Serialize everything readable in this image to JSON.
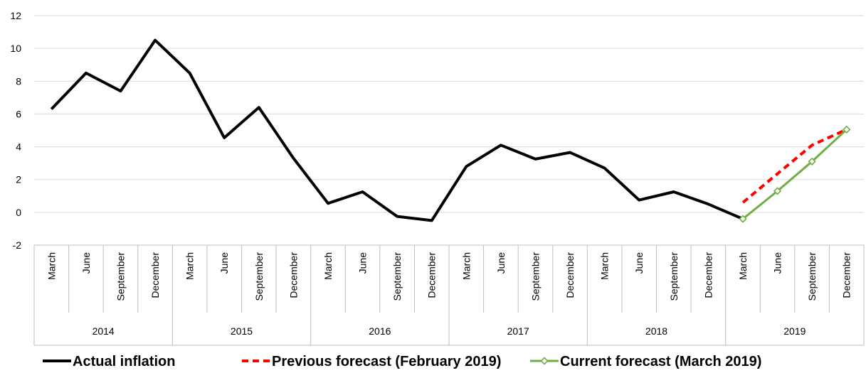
{
  "chart_data": {
    "type": "line",
    "title": "",
    "xlabel": "",
    "ylabel": "",
    "ylim": [
      -2,
      12
    ],
    "yticks": [
      -2,
      0,
      2,
      4,
      6,
      8,
      10,
      12
    ],
    "grid": true,
    "legend_position": "bottom",
    "years": [
      "2014",
      "2015",
      "2016",
      "2017",
      "2018",
      "2019"
    ],
    "quarters": [
      "March",
      "June",
      "September",
      "December"
    ],
    "categories": [
      "March",
      "June",
      "September",
      "December",
      "March",
      "June",
      "September",
      "December",
      "March",
      "June",
      "September",
      "December",
      "March",
      "June",
      "September",
      "December",
      "March",
      "June",
      "September",
      "December",
      "March",
      "June",
      "September",
      "December"
    ],
    "series": [
      {
        "name": "Actual inflation",
        "color": "#000000",
        "style": "solid",
        "values": [
          6.3,
          8.5,
          7.4,
          10.5,
          8.5,
          4.55,
          6.4,
          3.3,
          0.55,
          1.25,
          -0.25,
          -0.5,
          2.8,
          4.1,
          3.25,
          3.65,
          2.7,
          0.75,
          1.25,
          0.5,
          -0.4,
          null,
          null,
          null
        ]
      },
      {
        "name": "Previous forecast (February 2019)",
        "color": "#ff0000",
        "style": "dashed",
        "values": [
          null,
          null,
          null,
          null,
          null,
          null,
          null,
          null,
          null,
          null,
          null,
          null,
          null,
          null,
          null,
          null,
          null,
          null,
          null,
          null,
          0.6,
          2.35,
          4.1,
          5.05
        ]
      },
      {
        "name": "Current forecast (March 2019)",
        "color": "#70ad47",
        "style": "solid-diamond",
        "values": [
          null,
          null,
          null,
          null,
          null,
          null,
          null,
          null,
          null,
          null,
          null,
          null,
          null,
          null,
          null,
          null,
          null,
          null,
          null,
          null,
          -0.4,
          1.3,
          3.1,
          5.05
        ]
      }
    ]
  }
}
